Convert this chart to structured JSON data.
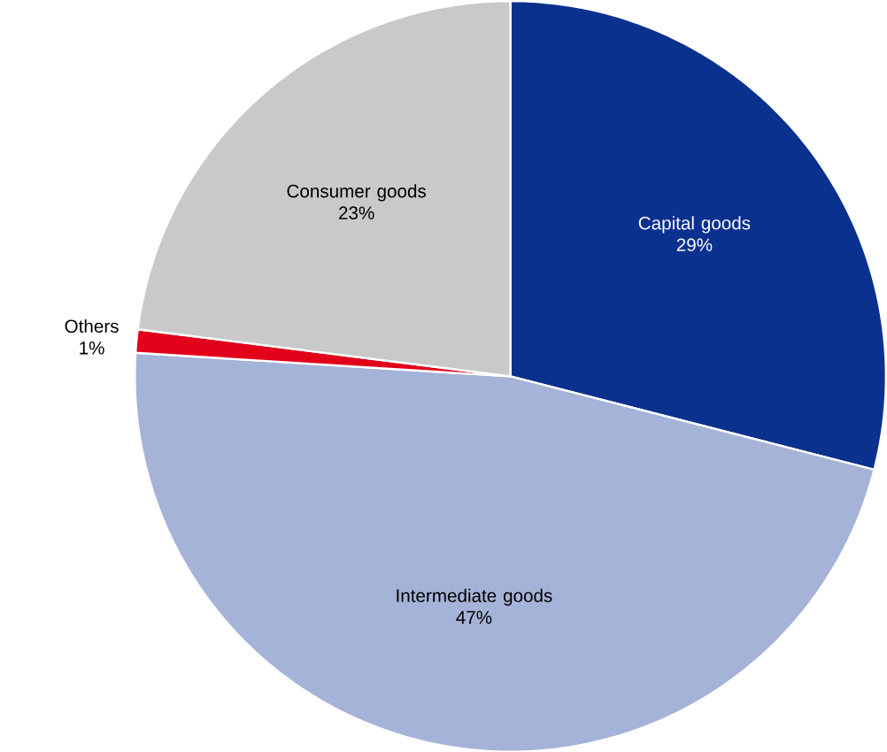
{
  "chart_data": {
    "type": "pie",
    "categories": [
      "Capital goods",
      "Intermediate goods",
      "Others",
      "Consumer goods"
    ],
    "values": [
      29,
      47,
      1,
      23
    ],
    "colors": [
      "#0b318f",
      "#a6b3d8",
      "#e2001a",
      "#c9c9c9"
    ],
    "value_labels": [
      "29%",
      "47%",
      "1%",
      "23%"
    ]
  }
}
